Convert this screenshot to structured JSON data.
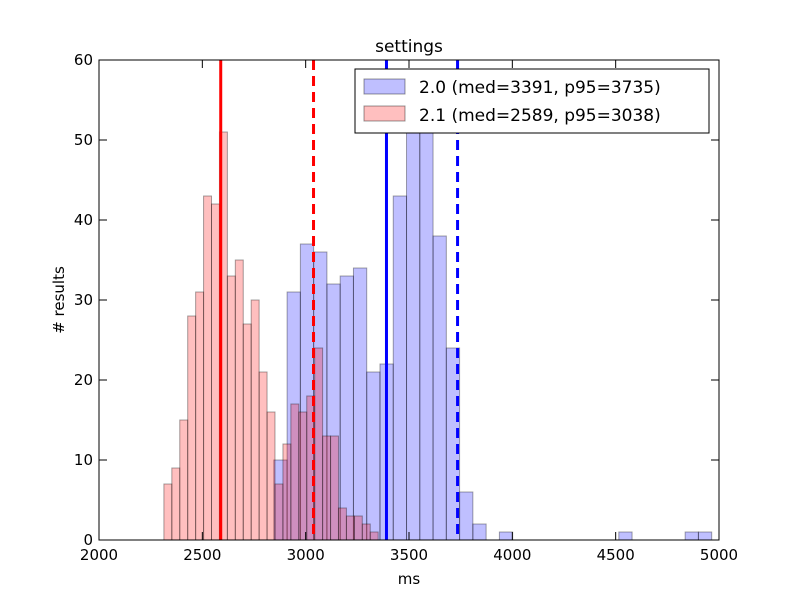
{
  "chart_data": {
    "type": "bar",
    "title": "settings",
    "xlabel": "ms",
    "ylabel": "# results",
    "xlim": [
      2000,
      5000
    ],
    "ylim": [
      0,
      60
    ],
    "xticks": [
      2000,
      2500,
      3000,
      3500,
      4000,
      4500,
      5000
    ],
    "yticks": [
      0,
      10,
      20,
      30,
      40,
      50,
      60
    ],
    "grid": false,
    "legend_position": "top-right",
    "series": [
      {
        "name": "2.0 (med=3391, p95=3735)",
        "color": "#0000ff",
        "opacity": 0.25,
        "bin_width": 64.2,
        "bin_start": 2846,
        "counts": [
          10,
          31,
          37,
          36,
          32,
          33,
          34,
          21,
          22,
          43,
          51,
          51,
          38,
          24,
          6,
          2,
          0,
          1,
          0,
          0,
          0,
          0,
          0,
          0,
          0,
          0,
          1,
          0,
          0,
          0,
          0,
          1,
          1
        ],
        "median": 3391,
        "p95": 3735
      },
      {
        "name": "2.1 (med=2589, p95=3038)",
        "color": "#ff0000",
        "opacity": 0.25,
        "bin_width": 38.4,
        "bin_start": 2314,
        "counts": [
          7,
          9,
          15,
          28,
          31,
          43,
          42,
          51,
          33,
          35,
          27,
          30,
          21,
          16,
          7,
          12,
          17,
          16,
          18,
          24,
          13,
          13,
          4,
          3,
          3,
          2,
          1
        ],
        "median": 2589,
        "p95": 3038
      }
    ]
  }
}
